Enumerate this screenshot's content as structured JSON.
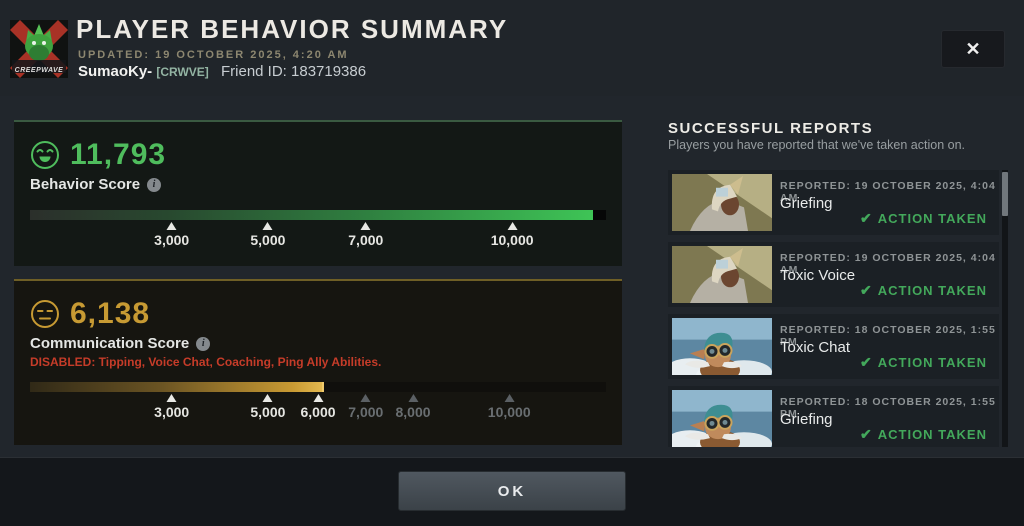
{
  "header": {
    "title": "PLAYER BEHAVIOR SUMMARY",
    "updated": "UPDATED: 19 OCTOBER 2025, 4:20 AM",
    "player_name": "SumaoKy-",
    "guild_tag": "[CRWVE]",
    "friend_id": "Friend ID: 183719386",
    "avatar_text": "CREEPWAVE"
  },
  "icons": {
    "close": "✕",
    "info": "i",
    "check": "✔"
  },
  "behavior": {
    "score": "11,793",
    "label": "Behavior Score",
    "accent_color": "#4fbd5d",
    "fill_percent": 97.8,
    "ticks": [
      {
        "label": "3,000",
        "pos": 24.6,
        "active": true
      },
      {
        "label": "5,000",
        "pos": 41.3,
        "active": true
      },
      {
        "label": "7,000",
        "pos": 58.3,
        "active": true
      },
      {
        "label": "10,000",
        "pos": 83.7,
        "active": true
      }
    ]
  },
  "communication": {
    "score": "6,138",
    "label": "Communication Score",
    "accent_color": "#c79a33",
    "disabled_text": "DISABLED:  Tipping, Voice Chat, Coaching, Ping Ally Abilities.",
    "disabled_color": "#c63c29",
    "fill_percent": 51,
    "ticks": [
      {
        "label": "3,000",
        "pos": 24.6,
        "active": true
      },
      {
        "label": "5,000",
        "pos": 41.3,
        "active": true
      },
      {
        "label": "6,000",
        "pos": 50.0,
        "active": true
      },
      {
        "label": "7,000",
        "pos": 58.3,
        "active": false
      },
      {
        "label": "8,000",
        "pos": 66.5,
        "active": false
      },
      {
        "label": "10,000",
        "pos": 83.2,
        "active": false
      }
    ]
  },
  "reports": {
    "title": "SUCCESSFUL REPORTS",
    "subtitle": "Players you have reported that we've taken action on.",
    "action_label": "ACTION TAKEN",
    "action_color": "#43a85b",
    "items": [
      {
        "reported": "REPORTED: 19 OCTOBER 2025, 4:04 AM",
        "type": "Griefing",
        "hero": "chen"
      },
      {
        "reported": "REPORTED: 19 OCTOBER 2025, 4:04 AM",
        "type": "Toxic Voice",
        "hero": "chen"
      },
      {
        "reported": "REPORTED: 18 OCTOBER 2025, 1:55 PM",
        "type": "Toxic Chat",
        "hero": "gyrocopter"
      },
      {
        "reported": "REPORTED: 18 OCTOBER 2025, 1:55 PM",
        "type": "Griefing",
        "hero": "gyrocopter"
      }
    ]
  },
  "footer": {
    "ok_label": "OK"
  }
}
